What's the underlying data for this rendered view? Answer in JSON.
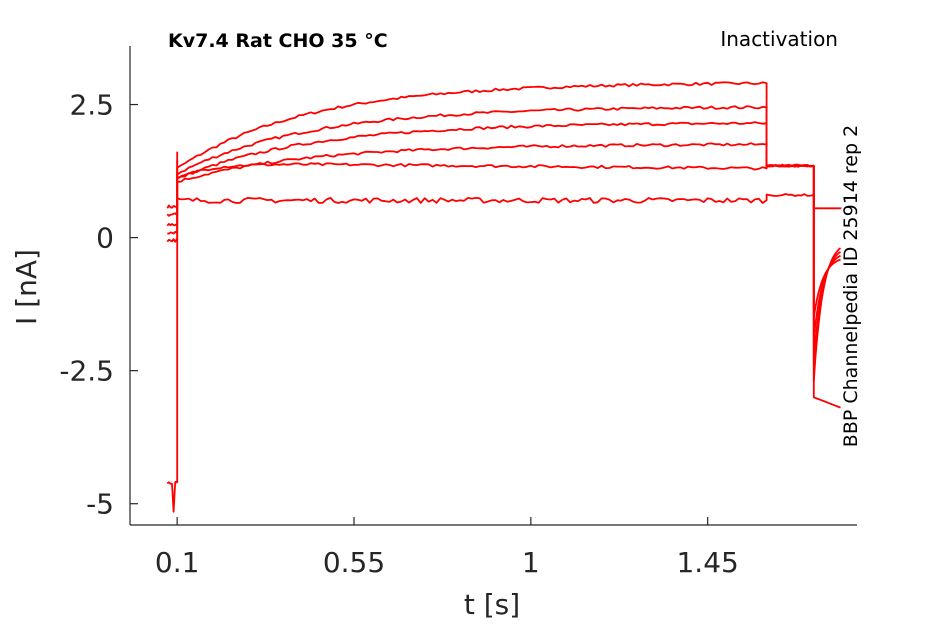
{
  "chart_data": {
    "type": "line",
    "title_left": "Kv7.4  Rat  CHO  35 °C",
    "title_right": "Inactivation",
    "side_label": "BBP Channelpedia ID 25914 rep 2",
    "xlabel": "t [s]",
    "ylabel": "I [nA]",
    "xlim": [
      -0.02,
      1.83
    ],
    "ylim": [
      -5.4,
      3.6
    ],
    "xticks": [
      0.1,
      0.55,
      1,
      1.45
    ],
    "xtick_labels": [
      "0.1",
      "0.55",
      "1",
      "1.45"
    ],
    "yticks": [
      -5,
      -2.5,
      0,
      2.5
    ],
    "ytick_labels": [
      "-5",
      "-2.5",
      "0",
      "2.5"
    ],
    "grid": false,
    "line_color": "#ff0000",
    "series": [
      {
        "hold": 0.58,
        "peak": 1.6,
        "steady": 1.3,
        "end": 2.9,
        "tail_lvl": 1.35,
        "final": -3.2
      },
      {
        "hold": 0.43,
        "peak": 1.45,
        "steady": 1.2,
        "end": 2.45,
        "tail_lvl": 1.35,
        "final": -3.0
      },
      {
        "hold": 0.25,
        "peak": 1.3,
        "steady": 1.1,
        "end": 2.15,
        "tail_lvl": 1.35,
        "final": -2.6
      },
      {
        "hold": 0.1,
        "peak": 1.2,
        "steady": 1.05,
        "end": 1.75,
        "tail_lvl": 1.35,
        "final": -2.2
      },
      {
        "hold": -0.05,
        "peak": 1.1,
        "steady": 1.4,
        "end": 1.3,
        "tail_lvl": 1.35,
        "final": -1.8
      },
      {
        "hold": -4.6,
        "peak": 0.72,
        "steady": 0.7,
        "end": 0.7,
        "tail_lvl": 0.8,
        "final": 0.55
      }
    ]
  }
}
